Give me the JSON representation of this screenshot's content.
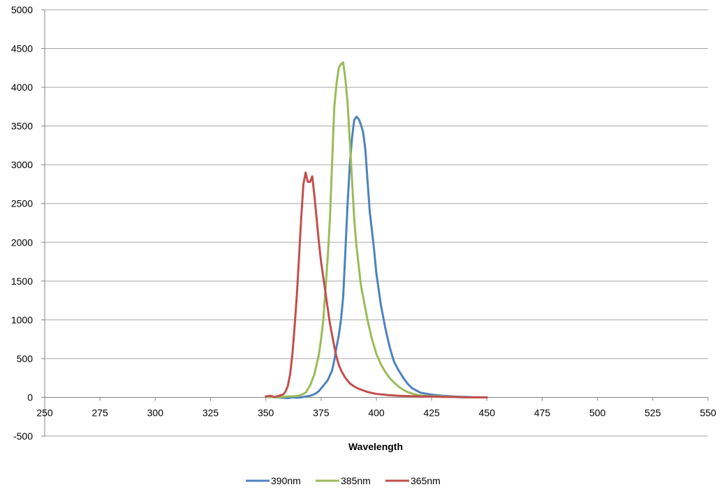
{
  "chart_data": {
    "type": "line",
    "title": "",
    "xlabel": "Wavelength",
    "ylabel": "",
    "xlim": [
      250,
      550
    ],
    "ylim": [
      -500,
      5000
    ],
    "x_ticks": [
      250,
      275,
      300,
      325,
      350,
      375,
      400,
      425,
      450,
      475,
      500,
      525,
      550
    ],
    "y_ticks": [
      -500,
      0,
      500,
      1000,
      1500,
      2000,
      2500,
      3000,
      3500,
      4000,
      4500,
      5000
    ],
    "grid": "horizontal",
    "legend_position": "bottom",
    "series": [
      {
        "name": "390nm",
        "color": "#4F81BD",
        "x": [
          350,
          355,
          360,
          362,
          364,
          366,
          368,
          370,
          372,
          374,
          376,
          378,
          380,
          381,
          382,
          383,
          384,
          385,
          386,
          387,
          388,
          389,
          390,
          391,
          392,
          393,
          394,
          395,
          396,
          397,
          398,
          399,
          400,
          402,
          404,
          406,
          408,
          410,
          412,
          414,
          416,
          418,
          420,
          425,
          430,
          435,
          440,
          445,
          450
        ],
        "y": [
          10,
          0,
          -10,
          0,
          -5,
          0,
          10,
          20,
          40,
          80,
          150,
          220,
          350,
          480,
          650,
          800,
          1000,
          1300,
          1900,
          2500,
          3000,
          3350,
          3580,
          3620,
          3590,
          3520,
          3420,
          3200,
          2800,
          2400,
          2150,
          1900,
          1600,
          1200,
          900,
          650,
          460,
          350,
          260,
          180,
          120,
          90,
          60,
          35,
          20,
          10,
          5,
          0,
          0
        ]
      },
      {
        "name": "385nm",
        "color": "#9BBB59",
        "x": [
          350,
          355,
          360,
          364,
          366,
          368,
          370,
          372,
          374,
          375,
          376,
          377,
          378,
          379,
          380,
          381,
          382,
          383,
          384,
          385,
          386,
          387,
          388,
          389,
          390,
          391,
          392,
          393,
          394,
          396,
          398,
          400,
          402,
          404,
          406,
          408,
          410,
          412,
          414,
          416,
          418,
          420,
          425,
          430,
          435,
          440,
          445,
          450
        ],
        "y": [
          5,
          0,
          10,
          15,
          30,
          60,
          150,
          300,
          550,
          750,
          1000,
          1400,
          1800,
          2300,
          3050,
          3750,
          4050,
          4250,
          4300,
          4320,
          4100,
          3800,
          3300,
          2800,
          2300,
          1950,
          1700,
          1450,
          1300,
          1000,
          750,
          560,
          430,
          330,
          250,
          190,
          140,
          100,
          70,
          50,
          35,
          25,
          15,
          10,
          5,
          0,
          0,
          0
        ]
      },
      {
        "name": "365nm",
        "color": "#C0504D",
        "x": [
          350,
          352,
          354,
          356,
          358,
          359,
          360,
          361,
          362,
          363,
          364,
          365,
          366,
          367,
          368,
          369,
          370,
          371,
          372,
          373,
          374,
          375,
          376,
          377,
          378,
          379,
          380,
          381,
          382,
          383,
          384,
          386,
          388,
          390,
          392,
          394,
          396,
          398,
          400,
          405,
          410,
          415,
          420,
          425,
          430,
          435,
          440,
          445,
          450
        ],
        "y": [
          10,
          20,
          5,
          20,
          40,
          80,
          150,
          300,
          550,
          900,
          1300,
          1800,
          2300,
          2750,
          2900,
          2780,
          2780,
          2850,
          2600,
          2300,
          2000,
          1750,
          1550,
          1350,
          1150,
          950,
          800,
          650,
          520,
          420,
          350,
          250,
          180,
          140,
          110,
          90,
          70,
          55,
          45,
          30,
          20,
          15,
          10,
          10,
          5,
          5,
          0,
          0,
          0
        ]
      }
    ]
  }
}
